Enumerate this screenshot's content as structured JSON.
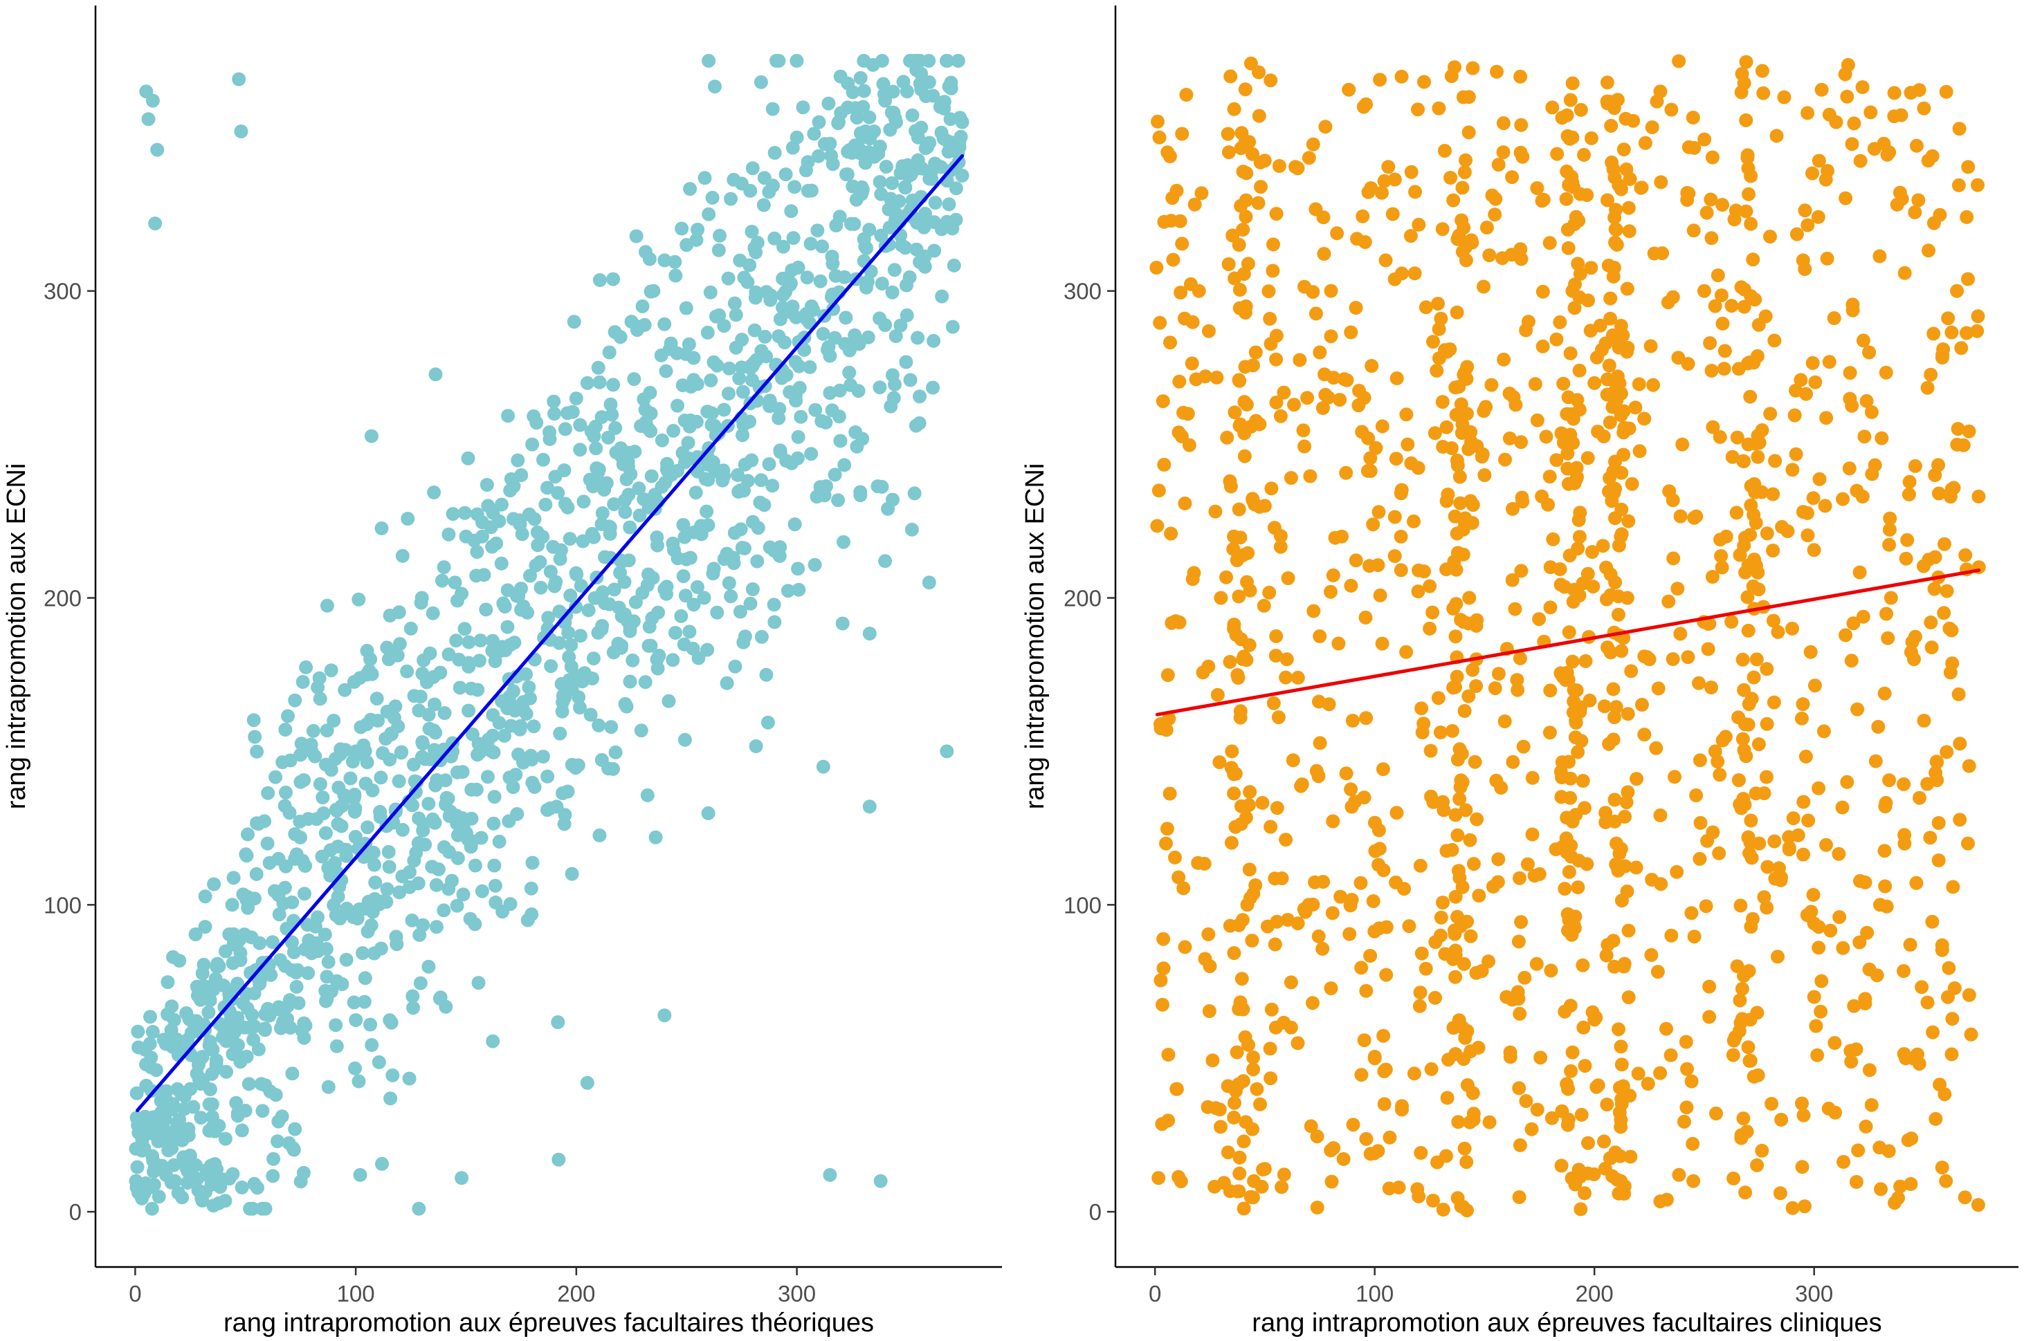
{
  "chart_data": [
    {
      "type": "scatter",
      "title": "",
      "xlabel": "rang intrapromotion aux épreuves facultaires théoriques",
      "ylabel": "rang intrapromotion aux ECNi",
      "xlim": [
        -18,
        393
      ],
      "ylim": [
        -18,
        393
      ],
      "xticks": [
        0,
        100,
        200,
        300
      ],
      "yticks": [
        0,
        100,
        200,
        300
      ],
      "grid": false,
      "legend": "none",
      "point_color": "#7EC8D0",
      "line_color": "#0000EE",
      "fit_line": {
        "x": [
          1,
          375
        ],
        "y": [
          33,
          344
        ]
      },
      "points_note": "approximately 1500 points; dense diagonal band around the regression line, dense cluster near (0-50, 0-50) and near (320-375, 320-370)",
      "series": [
        {
          "name": "",
          "x": [
            5,
            8,
            6,
            10,
            9,
            47,
            48,
            3,
            15,
            20,
            25,
            12,
            30,
            35,
            40,
            45,
            50,
            22,
            28,
            18,
            7,
            14,
            33,
            38,
            44,
            55,
            60,
            65,
            70,
            75,
            80,
            85,
            90,
            95,
            100,
            105,
            110,
            115,
            120,
            125,
            130,
            135,
            140,
            145,
            150,
            155,
            160,
            165,
            170,
            175,
            180,
            185,
            190,
            195,
            200,
            205,
            210,
            215,
            220,
            225,
            230,
            235,
            240,
            245,
            250,
            255,
            260,
            265,
            270,
            275,
            280,
            285,
            290,
            295,
            300,
            305,
            310,
            315,
            320,
            325,
            330,
            335,
            340,
            345,
            350,
            355,
            360,
            365,
            370,
            375,
            315,
            338,
            192,
            102,
            148,
            240,
            236,
            205,
            312,
            333,
            340,
            360,
            368,
            373
          ],
          "y": [
            365,
            362,
            356,
            346,
            322,
            369,
            352,
            5,
            20,
            30,
            40,
            15,
            50,
            35,
            60,
            55,
            90,
            25,
            45,
            10,
            8,
            12,
            70,
            80,
            100,
            110,
            120,
            115,
            130,
            140,
            150,
            135,
            160,
            170,
            150,
            175,
            160,
            180,
            185,
            190,
            200,
            195,
            210,
            205,
            220,
            215,
            230,
            225,
            235,
            240,
            250,
            245,
            260,
            255,
            265,
            270,
            275,
            280,
            285,
            290,
            295,
            300,
            310,
            305,
            315,
            320,
            325,
            318,
            330,
            335,
            340,
            328,
            345,
            338,
            350,
            342,
            355,
            348,
            358,
            345,
            360,
            352,
            362,
            355,
            365,
            350,
            368,
            360,
            366,
            355,
            12,
            10,
            17,
            12,
            11,
            64,
            122,
            42,
            145,
            132,
            212,
            205,
            150,
            345
          ]
        }
      ]
    },
    {
      "type": "scatter",
      "title": "",
      "xlabel": "rang intrapromotion aux épreuves facultaires cliniques",
      "ylabel": "rang intrapromotion aux ECNi",
      "xlim": [
        -18,
        393
      ],
      "ylim": [
        -18,
        393
      ],
      "xticks": [
        0,
        100,
        200,
        300
      ],
      "yticks": [
        0,
        100,
        200,
        300
      ],
      "grid": false,
      "legend": "none",
      "point_color": "#F39C12",
      "line_color": "#EE0000",
      "fit_line": {
        "x": [
          1,
          375
        ],
        "y": [
          162,
          209
        ]
      },
      "points_note": "approximately 1500 points spread uniformly over x 0-375 and y 0-375, with denser vertical streaks near x=40, 140, 190, 210 and 270",
      "series": [
        {
          "name": "",
          "x": [
            2,
            5,
            10,
            15,
            20,
            25,
            30,
            35,
            40,
            45,
            50,
            55,
            60,
            65,
            70,
            75,
            80,
            85,
            90,
            95,
            100,
            105,
            110,
            115,
            120,
            125,
            130,
            135,
            140,
            145,
            150,
            155,
            160,
            165,
            170,
            175,
            180,
            185,
            190,
            195,
            200,
            205,
            210,
            215,
            220,
            225,
            230,
            235,
            240,
            245,
            250,
            255,
            260,
            265,
            270,
            275,
            280,
            285,
            290,
            295,
            300,
            305,
            310,
            315,
            320,
            325,
            330,
            335,
            340,
            345,
            350,
            355,
            360,
            365,
            370,
            375,
            40,
            140,
            190,
            210,
            270,
            42,
            142,
            188,
            212,
            268
          ],
          "y": [
            350,
            120,
            40,
            260,
            300,
            80,
            200,
            150,
            320,
            10,
            230,
            60,
            180,
            340,
            100,
            280,
            20,
            220,
            160,
            360,
            50,
            310,
            130,
            250,
            5,
            190,
            90,
            370,
            140,
            30,
            240,
            330,
            70,
            170,
            290,
            110,
            210,
            15,
            350,
            60,
            270,
            130,
            320,
            200,
            45,
            180,
            365,
            90,
            250,
            10,
            300,
            150,
            220,
            80,
            340,
            120,
            260,
            30,
            190,
            310,
            70,
            230,
            355,
            140,
            20,
            280,
            100,
            200,
            330,
            50,
            160,
            240,
            10,
            300,
            120,
            210,
            180,
            60,
            300,
            120,
            250,
            100,
            260,
            40,
            220,
            170
          ]
        }
      ]
    }
  ]
}
